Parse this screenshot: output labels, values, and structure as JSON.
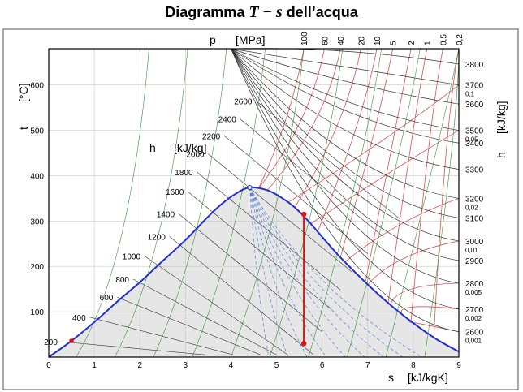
{
  "title": {
    "prefix": "Diagramma",
    "var1": "T",
    "operator": "−",
    "var2": "s",
    "suffix": "dell’acqua"
  },
  "chart_data": {
    "type": "line",
    "title": "Diagramma T − s dell’acqua",
    "xlabel": "s",
    "xunit": "[kJ/kgK]",
    "xlim": [
      0,
      9
    ],
    "xticks": [
      "0",
      "1",
      "2",
      "3",
      "4",
      "5",
      "6",
      "7",
      "8",
      "9"
    ],
    "ylabel": "t",
    "yunit": "[°C]",
    "ylim": [
      0,
      680
    ],
    "yticks": [
      "100",
      "200",
      "300",
      "400",
      "500",
      "600"
    ],
    "pressure_axis_label": "p",
    "pressure_axis_unit": "[MPa]",
    "pressure_ticks": [
      {
        "label": "100",
        "s": 5.6
      },
      {
        "label": "60",
        "s": 6.05
      },
      {
        "label": "40",
        "s": 6.4
      },
      {
        "label": "20",
        "s": 6.85
      },
      {
        "label": "10",
        "s": 7.2
      },
      {
        "label": "5",
        "s": 7.55
      },
      {
        "label": "2",
        "s": 7.95
      },
      {
        "label": "1",
        "s": 8.3
      },
      {
        "label": "0,5",
        "s": 8.65
      },
      {
        "label": "0,2",
        "s": 9.0
      }
    ],
    "enthalpy_label": "h",
    "enthalpy_unit": "[kJ/kg]",
    "enthalpy_inner_labels": [
      {
        "label": "2600",
        "s": 4.5,
        "t": 565
      },
      {
        "label": "2400",
        "s": 4.15,
        "t": 525
      },
      {
        "label": "2200",
        "s": 3.8,
        "t": 488
      },
      {
        "label": "2000",
        "s": 3.45,
        "t": 448
      },
      {
        "label": "1800",
        "s": 3.2,
        "t": 408
      },
      {
        "label": "1600",
        "s": 3.0,
        "t": 365
      },
      {
        "label": "1400",
        "s": 2.8,
        "t": 316
      },
      {
        "label": "1200",
        "s": 2.6,
        "t": 266
      },
      {
        "label": "1000",
        "s": 2.05,
        "t": 223
      },
      {
        "label": "800",
        "s": 1.8,
        "t": 172
      },
      {
        "label": "600",
        "s": 1.45,
        "t": 132
      },
      {
        "label": "400",
        "s": 0.85,
        "t": 88
      },
      {
        "label": "200",
        "s": 0.23,
        "t": 34
      }
    ],
    "right_labels": [
      {
        "h": "3800",
        "t": 646
      },
      {
        "h": "3700",
        "t": 600,
        "p": "0,1"
      },
      {
        "h": "3600",
        "t": 558
      },
      {
        "h": "3500",
        "t": 500,
        "p": "0,05"
      },
      {
        "h": "3400",
        "t": 472
      },
      {
        "h": "3300",
        "t": 414
      },
      {
        "h": "3200",
        "t": 350,
        "p": "0,02"
      },
      {
        "h": "3100",
        "t": 307
      },
      {
        "h": "3000",
        "t": 256,
        "p": "0,01"
      },
      {
        "h": "2900",
        "t": 213
      },
      {
        "h": "2800",
        "t": 163,
        "p": "0,005"
      },
      {
        "h": "2700",
        "t": 106,
        "p": "0,002"
      },
      {
        "h": "2600",
        "t": 56,
        "p": "0,001"
      }
    ],
    "saturation_dome": {
      "liquid": {
        "s": [
          0,
          0.5,
          1.0,
          1.5,
          2.0,
          2.5,
          3.0,
          3.5,
          3.8,
          4.1,
          4.41
        ],
        "t": [
          0,
          36,
          77,
          122,
          165,
          212,
          258,
          310,
          338,
          360,
          374
        ]
      },
      "vapor": {
        "s": [
          4.41,
          4.8,
          5.1,
          5.4,
          5.7,
          6.0,
          6.4,
          7.0,
          7.5,
          8.0,
          8.5,
          9.0
        ],
        "t": [
          374,
          368,
          352,
          330,
          300,
          265,
          220,
          160,
          115,
          75,
          40,
          12
        ]
      },
      "critical_point": {
        "s": 4.41,
        "t": 374
      }
    },
    "highlighted_process": {
      "points": [
        {
          "s": 5.6,
          "t": 315
        },
        {
          "s": 5.6,
          "t": 30
        }
      ],
      "left_marker": {
        "s": 0.5,
        "t": 36
      }
    },
    "grid": true
  }
}
